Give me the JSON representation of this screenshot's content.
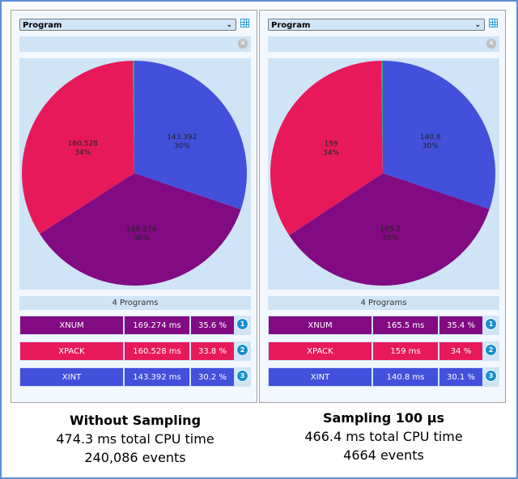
{
  "panels": [
    {
      "dropdown": "Program",
      "count_label": "4 Programs",
      "rows": [
        {
          "name": "XNUM",
          "time": "169.274 ms",
          "pct": "35.6 %",
          "rank": "1",
          "color": "#820a82"
        },
        {
          "name": "XPACK",
          "time": "160.528 ms",
          "pct": "33.8 %",
          "rank": "2",
          "color": "#e8195a"
        },
        {
          "name": "XINT",
          "time": "143.392 ms",
          "pct": "30.2 %",
          "rank": "3",
          "color": "#4250dc"
        }
      ],
      "chart_data": {
        "type": "pie",
        "order": "clockwise from top",
        "slices": [
          {
            "value": 143.392,
            "label": "143.392",
            "pct": "30%",
            "color": "#4250dc"
          },
          {
            "value": 169.274,
            "label": "169.274",
            "pct": "36%",
            "color": "#820a82"
          },
          {
            "value": 160.528,
            "label": "160.528",
            "pct": "34%",
            "color": "#e8195a"
          },
          {
            "value": 1.1,
            "label": "",
            "pct": "",
            "color": "#2eaa7a"
          }
        ]
      },
      "caption": {
        "title": "Without Sampling",
        "line1": "474.3 ms total CPU time",
        "line2": "240,086 events"
      }
    },
    {
      "dropdown": "Program",
      "count_label": "4 Programs",
      "rows": [
        {
          "name": "XNUM",
          "time": "165.5 ms",
          "pct": "35.4 %",
          "rank": "1",
          "color": "#820a82"
        },
        {
          "name": "XPACK",
          "time": "159 ms",
          "pct": "34 %",
          "rank": "2",
          "color": "#e8195a"
        },
        {
          "name": "XINT",
          "time": "140.8 ms",
          "pct": "30.1 %",
          "rank": "3",
          "color": "#4250dc"
        }
      ],
      "chart_data": {
        "type": "pie",
        "order": "clockwise from top",
        "slices": [
          {
            "value": 140.8,
            "label": "140.8",
            "pct": "30%",
            "color": "#4250dc"
          },
          {
            "value": 165.5,
            "label": "165.5",
            "pct": "35%",
            "color": "#820a82"
          },
          {
            "value": 159,
            "label": "159",
            "pct": "34%",
            "color": "#e8195a"
          },
          {
            "value": 1.1,
            "label": "",
            "pct": "",
            "color": "#2eaa7a"
          }
        ]
      },
      "caption": {
        "title": "Sampling 100 µs",
        "line1": "466.4 ms total CPU time",
        "line2": "4664 events"
      }
    }
  ]
}
